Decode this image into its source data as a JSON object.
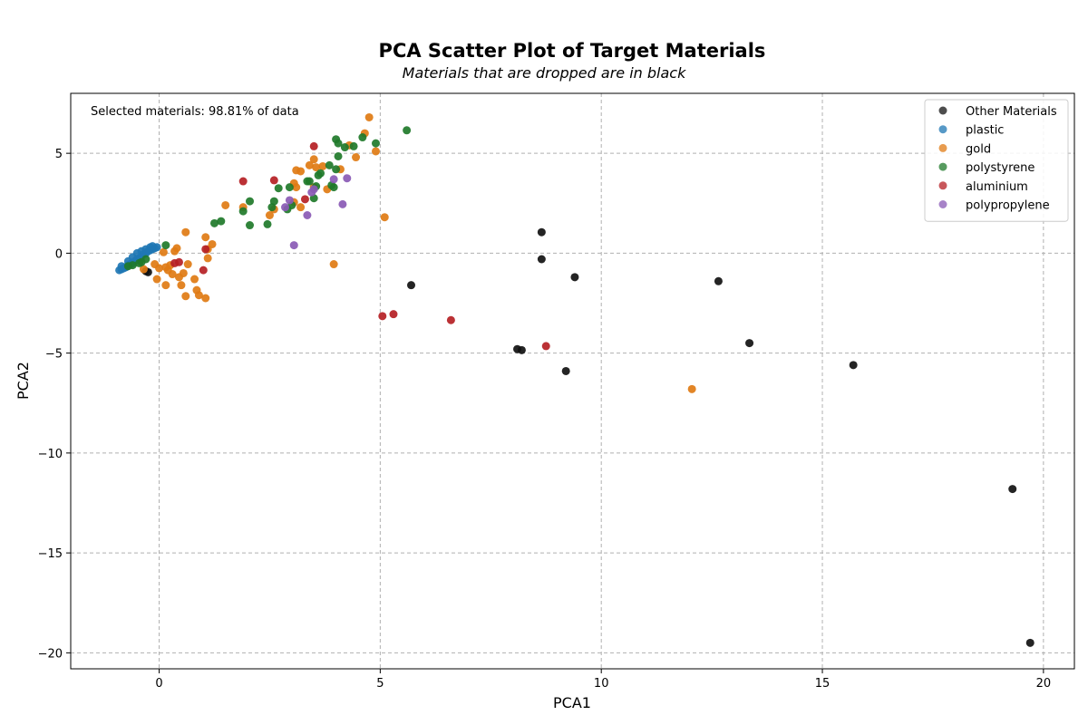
{
  "chart_data": {
    "type": "scatter",
    "title": "PCA Scatter Plot of Target Materials",
    "subtitle": "Materials that are dropped are in black",
    "xlabel": "PCA1",
    "ylabel": "PCA2",
    "xlim": [
      -2,
      20.7
    ],
    "ylim": [
      -20.8,
      8.0
    ],
    "xticks": [
      0,
      5,
      10,
      15,
      20
    ],
    "yticks": [
      5,
      0,
      -5,
      -10,
      -15,
      -20
    ],
    "grid": true,
    "legend_position": "top-right",
    "annotation": "Selected materials: 98.81% of data",
    "series": [
      {
        "name": "Other Materials",
        "color": "#111111",
        "points": [
          [
            -0.3,
            -0.9
          ],
          [
            -0.25,
            -0.95
          ],
          [
            8.65,
            1.05
          ],
          [
            8.65,
            -0.3
          ],
          [
            9.4,
            -1.2
          ],
          [
            5.7,
            -1.6
          ],
          [
            12.65,
            -1.4
          ],
          [
            8.1,
            -4.8
          ],
          [
            8.2,
            -4.85
          ],
          [
            13.35,
            -4.5
          ],
          [
            9.2,
            -5.9
          ],
          [
            15.7,
            -5.6
          ],
          [
            19.3,
            -11.8
          ],
          [
            19.7,
            -19.5
          ]
        ]
      },
      {
        "name": "plastic",
        "color": "#1f77b4",
        "points": [
          [
            -0.9,
            -0.85
          ],
          [
            -0.85,
            -0.8
          ],
          [
            -0.8,
            -0.75
          ],
          [
            -0.75,
            -0.7
          ],
          [
            -0.7,
            -0.6
          ],
          [
            -0.65,
            -0.55
          ],
          [
            -0.6,
            -0.5
          ],
          [
            -0.55,
            -0.4
          ],
          [
            -0.5,
            -0.3
          ],
          [
            -0.45,
            -0.25
          ],
          [
            -0.4,
            -0.15
          ],
          [
            -0.35,
            -0.05
          ],
          [
            -0.3,
            0.0
          ],
          [
            -0.25,
            0.1
          ],
          [
            -0.2,
            0.15
          ],
          [
            -0.15,
            0.2
          ],
          [
            -0.1,
            0.25
          ],
          [
            -0.05,
            0.3
          ],
          [
            -0.2,
            0.3
          ],
          [
            -0.3,
            0.2
          ],
          [
            -0.4,
            0.1
          ],
          [
            -0.5,
            0.0
          ],
          [
            -0.6,
            -0.2
          ],
          [
            -0.7,
            -0.4
          ],
          [
            -0.85,
            -0.65
          ],
          [
            -0.15,
            0.35
          ]
        ]
      },
      {
        "name": "gold",
        "color": "#e07b14",
        "points": [
          [
            4.75,
            6.8
          ],
          [
            4.65,
            6.0
          ],
          [
            4.9,
            5.1
          ],
          [
            4.45,
            4.8
          ],
          [
            3.5,
            4.7
          ],
          [
            3.4,
            4.4
          ],
          [
            3.55,
            4.3
          ],
          [
            3.7,
            4.35
          ],
          [
            4.1,
            4.2
          ],
          [
            3.1,
            4.15
          ],
          [
            3.2,
            4.1
          ],
          [
            4.3,
            5.4
          ],
          [
            3.05,
            3.5
          ],
          [
            3.1,
            3.3
          ],
          [
            3.5,
            3.3
          ],
          [
            3.8,
            3.2
          ],
          [
            3.05,
            2.55
          ],
          [
            3.2,
            2.3
          ],
          [
            2.5,
            1.9
          ],
          [
            2.6,
            2.2
          ],
          [
            1.9,
            2.3
          ],
          [
            1.5,
            2.4
          ],
          [
            5.1,
            1.8
          ],
          [
            3.95,
            -0.55
          ],
          [
            0.6,
            1.05
          ],
          [
            1.05,
            0.8
          ],
          [
            1.2,
            0.45
          ],
          [
            0.1,
            0.05
          ],
          [
            0.35,
            0.1
          ],
          [
            0.4,
            0.25
          ],
          [
            1.1,
            0.2
          ],
          [
            1.1,
            -0.25
          ],
          [
            0.65,
            -0.55
          ],
          [
            0.55,
            -1.0
          ],
          [
            0.45,
            -1.2
          ],
          [
            0.3,
            -1.05
          ],
          [
            0.2,
            -0.85
          ],
          [
            0.25,
            -0.6
          ],
          [
            0.15,
            -0.7
          ],
          [
            0.0,
            -0.75
          ],
          [
            -0.1,
            -0.55
          ],
          [
            -0.35,
            -0.8
          ],
          [
            -0.05,
            -1.3
          ],
          [
            0.15,
            -1.6
          ],
          [
            0.5,
            -1.6
          ],
          [
            0.8,
            -1.3
          ],
          [
            0.85,
            -1.85
          ],
          [
            0.9,
            -2.1
          ],
          [
            0.6,
            -2.15
          ],
          [
            1.05,
            -2.25
          ],
          [
            12.05,
            -6.8
          ]
        ]
      },
      {
        "name": "polystyrene",
        "color": "#1f7a2a",
        "points": [
          [
            5.6,
            6.15
          ],
          [
            4.0,
            5.7
          ],
          [
            4.05,
            5.5
          ],
          [
            4.2,
            5.3
          ],
          [
            4.4,
            5.35
          ],
          [
            4.6,
            5.8
          ],
          [
            4.9,
            5.5
          ],
          [
            4.05,
            4.85
          ],
          [
            3.85,
            4.4
          ],
          [
            4.0,
            4.2
          ],
          [
            3.4,
            3.6
          ],
          [
            3.65,
            4.0
          ],
          [
            3.6,
            3.9
          ],
          [
            3.35,
            3.6
          ],
          [
            2.95,
            3.3
          ],
          [
            2.7,
            3.25
          ],
          [
            3.95,
            3.3
          ],
          [
            3.9,
            3.4
          ],
          [
            3.55,
            3.35
          ],
          [
            2.6,
            2.6
          ],
          [
            2.55,
            2.3
          ],
          [
            2.05,
            2.6
          ],
          [
            1.9,
            2.1
          ],
          [
            2.9,
            2.2
          ],
          [
            3.0,
            2.4
          ],
          [
            3.5,
            2.75
          ],
          [
            1.25,
            1.5
          ],
          [
            1.4,
            1.6
          ],
          [
            2.05,
            1.4
          ],
          [
            2.45,
            1.45
          ],
          [
            0.15,
            0.4
          ],
          [
            -0.3,
            -0.3
          ],
          [
            -0.45,
            -0.5
          ],
          [
            -0.6,
            -0.6
          ],
          [
            -0.7,
            -0.65
          ],
          [
            -0.4,
            -0.45
          ]
        ]
      },
      {
        "name": "aluminium",
        "color": "#b51f24",
        "points": [
          [
            3.5,
            5.35
          ],
          [
            1.9,
            3.6
          ],
          [
            2.6,
            3.65
          ],
          [
            3.3,
            2.7
          ],
          [
            0.45,
            -0.45
          ],
          [
            1.0,
            -0.85
          ],
          [
            1.05,
            0.2
          ],
          [
            5.05,
            -3.15
          ],
          [
            5.3,
            -3.05
          ],
          [
            6.6,
            -3.35
          ],
          [
            8.75,
            -4.65
          ],
          [
            0.35,
            -0.5
          ]
        ]
      },
      {
        "name": "polypropylene",
        "color": "#8a5ab5",
        "points": [
          [
            3.95,
            3.7
          ],
          [
            4.25,
            3.75
          ],
          [
            3.5,
            3.2
          ],
          [
            3.45,
            3.05
          ],
          [
            2.95,
            2.65
          ],
          [
            2.85,
            2.3
          ],
          [
            3.35,
            1.9
          ],
          [
            4.15,
            2.45
          ],
          [
            3.05,
            0.4
          ]
        ]
      }
    ]
  }
}
